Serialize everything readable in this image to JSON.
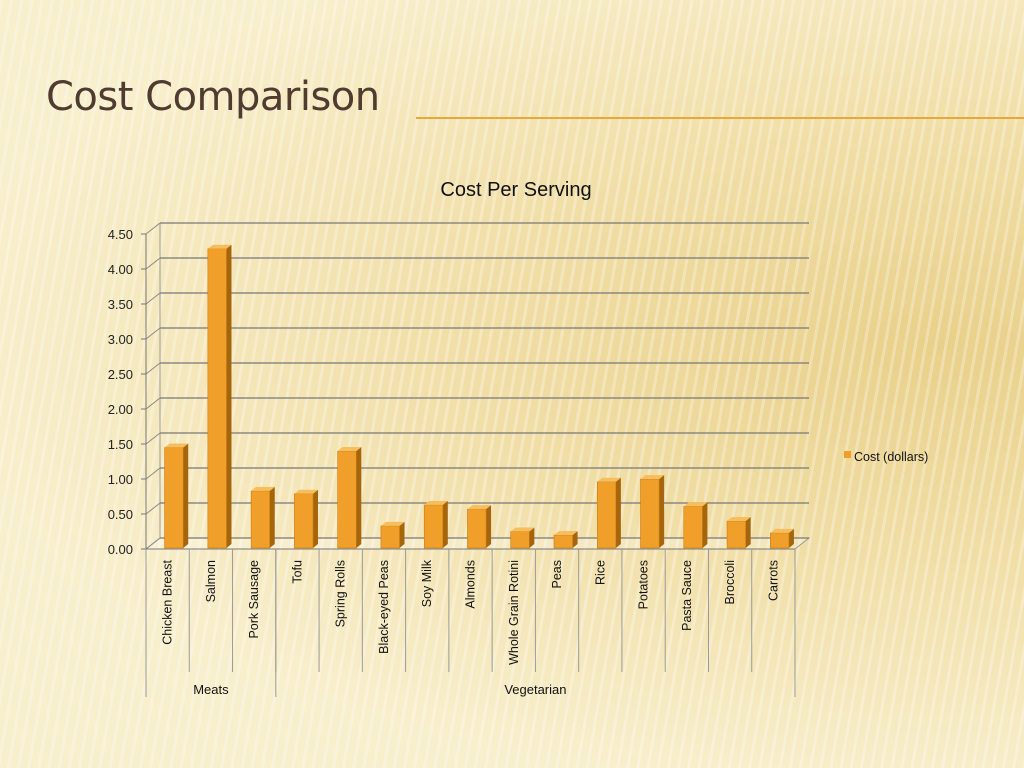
{
  "slide": {
    "title": "Cost Comparison"
  },
  "chart_data": {
    "type": "bar",
    "title": "Cost Per Serving",
    "categories": [
      "Chicken Breast",
      "Salmon",
      "Pork Sausage",
      "Tofu",
      "Spring Rolls",
      "Black-eyed Peas",
      "Soy Milk",
      "Almonds",
      "Whole Grain Rotini",
      "Peas",
      "Rice",
      "Potatoes",
      "Pasta Sauce",
      "Broccoli",
      "Carrots"
    ],
    "groups": [
      {
        "label": "Meats",
        "count": 3
      },
      {
        "label": "Vegetarian",
        "count": 12
      }
    ],
    "series": [
      {
        "name": "Cost (dollars)",
        "color": "#f0a02a",
        "values": [
          1.45,
          4.29,
          0.83,
          0.79,
          1.4,
          0.33,
          0.63,
          0.57,
          0.25,
          0.2,
          0.96,
          1.0,
          0.61,
          0.4,
          0.23
        ]
      }
    ],
    "yticks": [
      "0.00",
      "0.50",
      "1.00",
      "1.50",
      "2.00",
      "2.50",
      "3.00",
      "3.50",
      "4.00",
      "4.50"
    ],
    "ylim": [
      0,
      4.5
    ],
    "grid": true,
    "legend_position": "right"
  }
}
